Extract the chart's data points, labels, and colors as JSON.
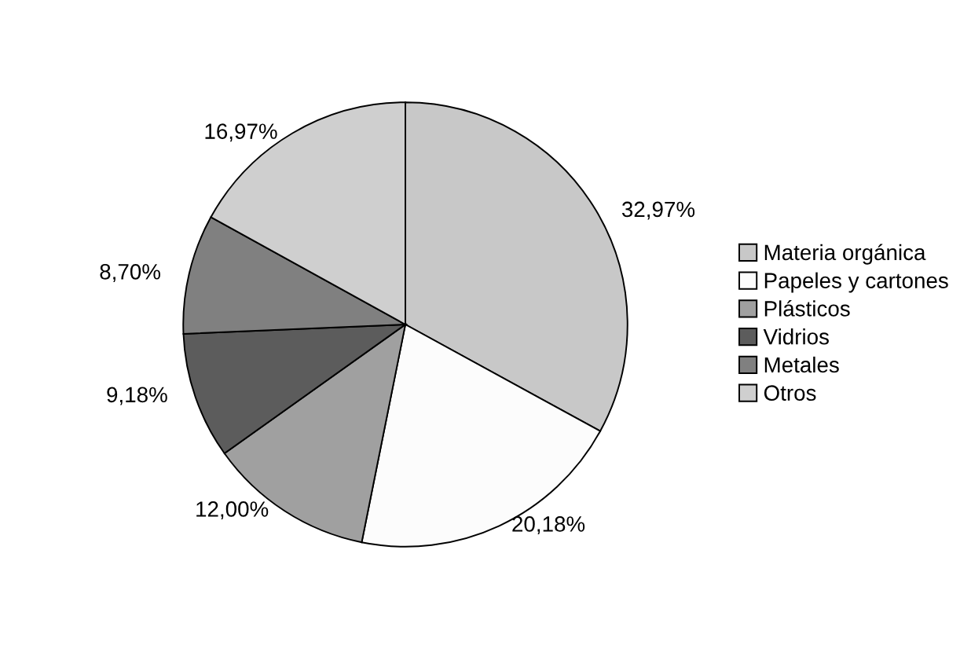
{
  "chart_data": {
    "type": "pie",
    "categories": [
      "Materia orgánica",
      "Papeles y cartones",
      "Plásticos",
      "Vidrios",
      "Metales",
      "Otros"
    ],
    "values": [
      32.97,
      20.18,
      12.0,
      9.18,
      8.7,
      16.97
    ],
    "value_labels": [
      "32,97%",
      "20,18%",
      "12,00%",
      "9,18%",
      "8,70%",
      "16,97%"
    ],
    "colors": [
      "#c8c8c8",
      "#fcfcfc",
      "#a0a0a0",
      "#5c5c5c",
      "#808080",
      "#cfcfcf"
    ],
    "legend": "right"
  }
}
